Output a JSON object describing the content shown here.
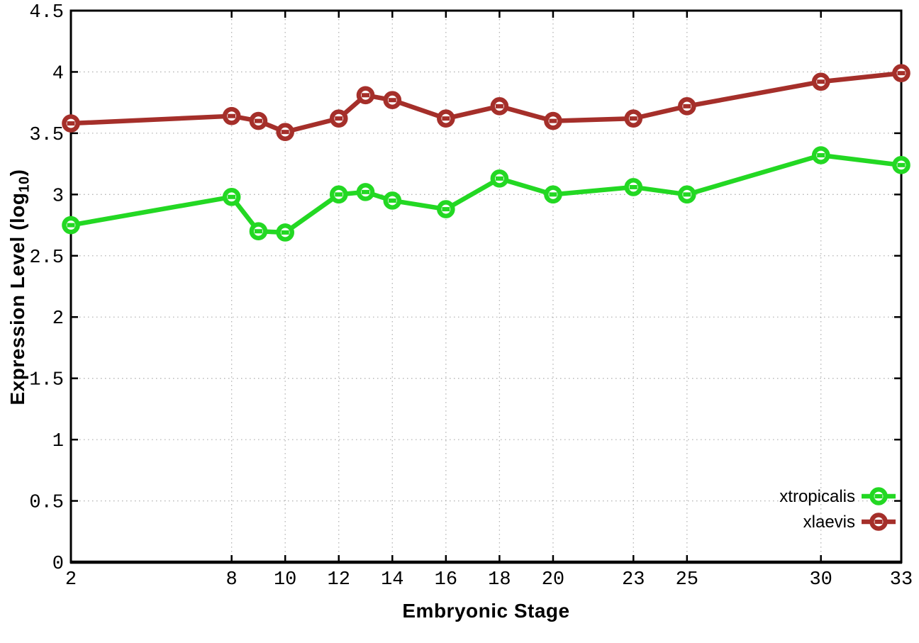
{
  "figure": {
    "background": "#ffffff"
  },
  "chart_data": {
    "type": "line",
    "title": "",
    "xlabel": "Embryonic Stage",
    "ylabel": "Expression Level (log10)",
    "ylabel_parts": {
      "pre": "Expression Level (log",
      "sub": "10",
      "post": ")"
    },
    "x": [
      2,
      8,
      9,
      10,
      12,
      13,
      14,
      16,
      18,
      20,
      23,
      25,
      30,
      33
    ],
    "series": [
      {
        "name": "xtropicalis",
        "color": "#23d823",
        "values": [
          2.75,
          2.98,
          2.7,
          2.69,
          3.0,
          3.02,
          2.95,
          2.88,
          3.13,
          3.0,
          3.06,
          3.0,
          3.32,
          3.24
        ]
      },
      {
        "name": "xlaevis",
        "color": "#a52f2a",
        "values": [
          3.58,
          3.64,
          3.6,
          3.51,
          3.62,
          3.81,
          3.77,
          3.62,
          3.72,
          3.6,
          3.62,
          3.72,
          3.92,
          3.99
        ]
      }
    ],
    "xlim": [
      2,
      33
    ],
    "ylim": [
      0,
      4.5
    ],
    "xticks": {
      "values": [
        2,
        8,
        10,
        12,
        14,
        16,
        18,
        20,
        23,
        25,
        30,
        33
      ],
      "labels": [
        "2",
        "8",
        "10",
        "12",
        "14",
        "16",
        "18",
        "20",
        "23",
        "25",
        "30",
        "33"
      ]
    },
    "yticks": {
      "values": [
        0,
        0.5,
        1,
        1.5,
        2,
        2.5,
        3,
        3.5,
        4,
        4.5
      ],
      "labels": [
        "0",
        "0.5",
        "1",
        "1.5",
        "2",
        "2.5",
        "3",
        "3.5",
        "4",
        "4.5"
      ]
    },
    "grid": true,
    "grid_color": "#b4b4b4",
    "axis_color": "#000000",
    "marker": "open-circle",
    "legend": {
      "position": "bottom-right",
      "entries": [
        "xtropicalis",
        "xlaevis"
      ]
    }
  }
}
